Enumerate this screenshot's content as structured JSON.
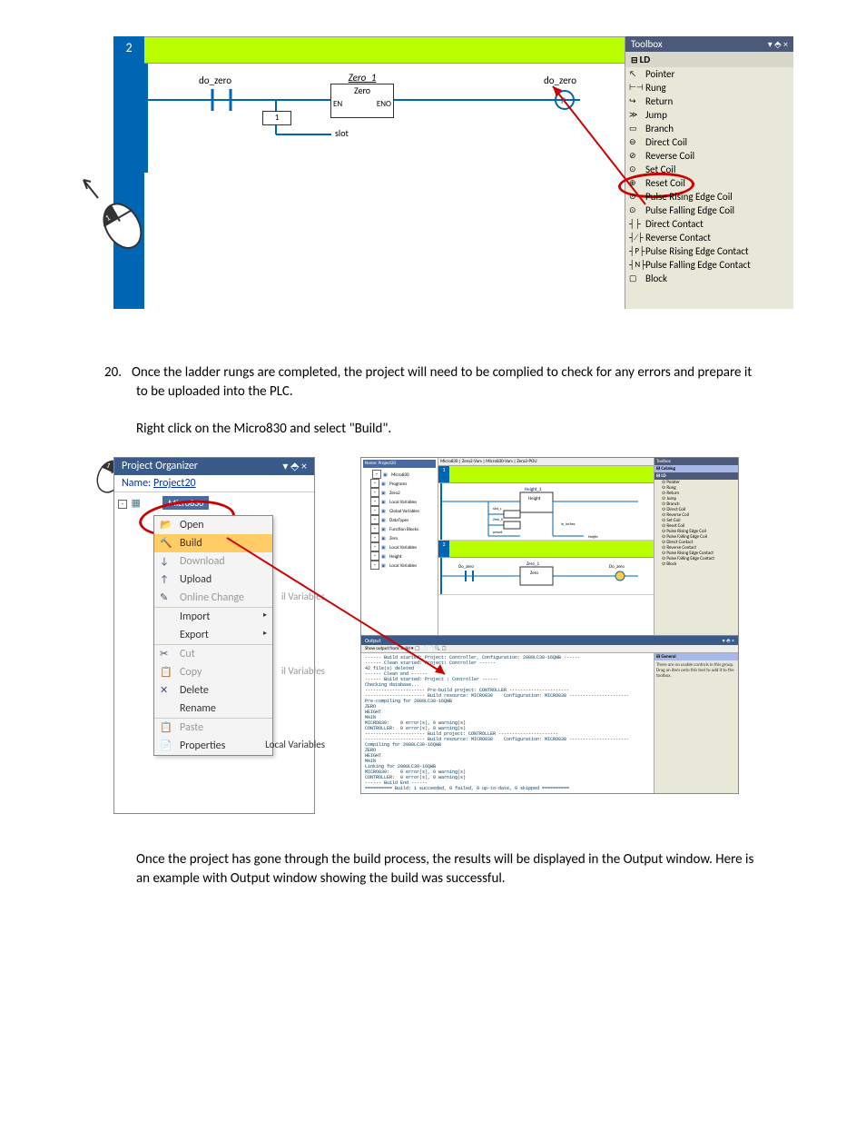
{
  "figure1": {
    "rung_number": "2",
    "contact_label": "do_zero",
    "coil_label": "do_zero",
    "fb": {
      "instance": "Zero_1",
      "name": "Zero",
      "en": "EN",
      "eno": "ENO",
      "slot_num": "1",
      "slot": "slot"
    },
    "toolbox": {
      "title": "Toolbox",
      "pin": "▾ ⬘ ×",
      "category": "LD",
      "items": [
        {
          "icon": "↖",
          "label": "Pointer"
        },
        {
          "icon": "⊢⊣",
          "label": "Rung"
        },
        {
          "icon": "↪",
          "label": "Return"
        },
        {
          "icon": "≫",
          "label": "Jump"
        },
        {
          "icon": "▭",
          "label": "Branch"
        },
        {
          "icon": "⊖",
          "label": "Direct Coil"
        },
        {
          "icon": "⊘",
          "label": "Reverse Coil"
        },
        {
          "icon": "⊙",
          "label": "Set Coil"
        },
        {
          "icon": "⊕",
          "label": "Reset Coil",
          "highlight": true
        },
        {
          "icon": "⊙",
          "label": "Pulse Rising Edge Coil"
        },
        {
          "icon": "⊙",
          "label": "Pulse Falling Edge Coil"
        },
        {
          "icon": "┤├",
          "label": "Direct Contact"
        },
        {
          "icon": "┤∕├",
          "label": "Reverse Contact"
        },
        {
          "icon": "┤P├",
          "label": "Pulse Rising Edge Contact"
        },
        {
          "icon": "┤N├",
          "label": "Pulse Falling Edge Contact"
        },
        {
          "icon": "▢",
          "label": "Block"
        }
      ]
    }
  },
  "step20": {
    "num": "20.",
    "text1": "Once the ladder rungs are completed, the project will need to be complied to check for any errors and prepare it to be uploaded into the PLC.",
    "text2": "Right click on the Micro830 and select \"Build\"."
  },
  "figure2": {
    "proj_org": {
      "header": "Project Organizer",
      "pin": "▾ ⬘ ×",
      "name_label": "Name:",
      "project_name": "Project20",
      "device": "Micro830"
    },
    "context_menu": [
      {
        "icon": "📂",
        "label": "Open"
      },
      {
        "icon": "🔨",
        "label": "Build",
        "highlight": true
      },
      {
        "icon": "↓",
        "label": "Download",
        "dis": true
      },
      {
        "icon": "↑",
        "label": "Upload"
      },
      {
        "icon": "✎",
        "label": "Online Change",
        "dis": true,
        "side": "il Variables"
      },
      {
        "icon": "",
        "label": "Import",
        "arrow": "▸",
        "sep": true
      },
      {
        "icon": "",
        "label": "Export",
        "arrow": "▸"
      },
      {
        "icon": "✂",
        "label": "Cut",
        "dis": true,
        "sep": true
      },
      {
        "icon": "📋",
        "label": "Copy",
        "dis": true,
        "side": "il Variables"
      },
      {
        "icon": "✕",
        "label": "Delete"
      },
      {
        "icon": "",
        "label": "Rename"
      },
      {
        "icon": "📋",
        "label": "Paste",
        "dis": true,
        "sep": true
      },
      {
        "icon": "📄",
        "label": "Properties",
        "side": "Local Variables"
      }
    ],
    "thumb": {
      "proj_header": "Name: Project20",
      "tree": [
        "Micro830",
        "Programs",
        "Zero2",
        "Local Variables",
        "Global Variables",
        "DataTypes",
        "Function Blocks",
        "Zero",
        "Local Variables",
        "Height",
        "Local Variables"
      ],
      "tabs": "Micro830 | Zero2-Vars | Micro830-Vars | Zero2-POU",
      "toolbox_header": "Toolbox",
      "tbx_cat1": "Catalog",
      "tbx_cat2": "LD",
      "tbx_items": [
        "Pointer",
        "Rung",
        "Return",
        "Jump",
        "Branch",
        "Direct Coil",
        "Reverse Coil",
        "Set Coil",
        "Reset Coil",
        "Pulse Rising Edge Coil",
        "Pulse Falling Edge Coil",
        "Direct Contact",
        "Reverse Contact",
        "Pulse Rising Edge Contact",
        "Pulse Falling Edge Contact",
        "Block"
      ],
      "output_header": "Output",
      "output_tools": "▾ ⬘ ×",
      "output_sub": "Show output from:  Build                              ▾  📋 📄 📄 🔍 📋",
      "output_text": "------ Build started: Project: Controller, Configuration: 2080LC30-16QWB ------\n------ Clean started: Project: Controller ------\n42 file(s) deleted\n------ Clean end ------\n------ Build started: Project : Controller ------\nChecking database...\n---------------------- Pre-build project: CONTROLLER ----------------------\n---------------------- Build resource: MICRO830    Configuration: MICRO830 ----------------------\nPre-compiling for 2080LC30-16QWB\nZERO\nHEIGHT\nMAIN\nMICRO830:    0 error(s), 0 warning(s)\nCONTROLLER:  0 error(s), 0 warning(s)\n---------------------- Build project: CONTROLLER ----------------------\n---------------------- Build resource: MICRO830    Configuration: MICRO830 ----------------------\nCompiling for 2080LC30-16QWB\nZERO\nHEIGHT\nMAIN\nLinking for 2080LC30-16QWB\nMICRO830:    0 error(s), 0 warning(s)\nCONTROLLER:  0 error(s), 0 warning(s)\n------ Build End ------\n========== Build: 1 succeeded, 0 failed, 0 up-to-date, 0 skipped ==========",
      "prop_header": "General",
      "prop_text": "There are no usable controls in this group. Drag an item onto this text to add it to the toolbox."
    }
  },
  "closing": {
    "text": "Once the project has gone through the build process, the results will be displayed in the Output window.  Here is an example with Output window showing the build was successful."
  }
}
